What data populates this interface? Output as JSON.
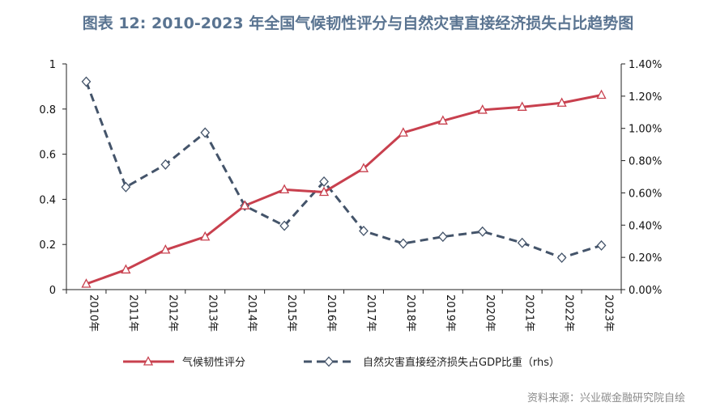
{
  "title": "图表 12: 2010-2023 年全国气候韧性评分与自然灾害直接经济损失占比趋势图",
  "source": "资料来源：兴业碳金融研究院自绘",
  "colors": {
    "series1": "#c8404e",
    "series2": "#44546a",
    "axis": "#222222",
    "title": "#5a7491"
  },
  "chart_data": {
    "type": "line",
    "categories": [
      "2010年",
      "2011年",
      "2012年",
      "2013年",
      "2014年",
      "2015年",
      "2016年",
      "2017年",
      "2018年",
      "2019年",
      "2020年",
      "2021年",
      "2022年",
      "2023年"
    ],
    "y_left": {
      "range": [
        0,
        1
      ],
      "ticks": [
        "0",
        "0.2",
        "0.4",
        "0.6",
        "0.8",
        "1"
      ],
      "tick_values": [
        0,
        0.2,
        0.4,
        0.6,
        0.8,
        1
      ]
    },
    "y_right": {
      "range": [
        0,
        1.4
      ],
      "ticks": [
        "0.00%",
        "0.20%",
        "0.40%",
        "0.60%",
        "0.80%",
        "1.00%",
        "1.20%",
        "1.40%"
      ],
      "tick_values": [
        0,
        0.2,
        0.4,
        0.6,
        0.8,
        1.0,
        1.2,
        1.4
      ]
    },
    "series": [
      {
        "name": "气候韧性评分",
        "axis": "left",
        "marker": "triangle",
        "style": "solid",
        "values": [
          0.025,
          0.088,
          0.176,
          0.234,
          0.372,
          0.443,
          0.432,
          0.537,
          0.695,
          0.748,
          0.796,
          0.809,
          0.827,
          0.862
        ]
      },
      {
        "name": "自然灾害直接经济损失占GDP比重（rhs）",
        "axis": "right",
        "marker": "diamond",
        "style": "dashed",
        "values": [
          1.29,
          0.636,
          0.776,
          0.974,
          0.52,
          0.396,
          0.67,
          0.364,
          0.286,
          0.328,
          0.36,
          0.29,
          0.198,
          0.274
        ]
      }
    ],
    "legend_position": "bottom",
    "grid": false
  }
}
